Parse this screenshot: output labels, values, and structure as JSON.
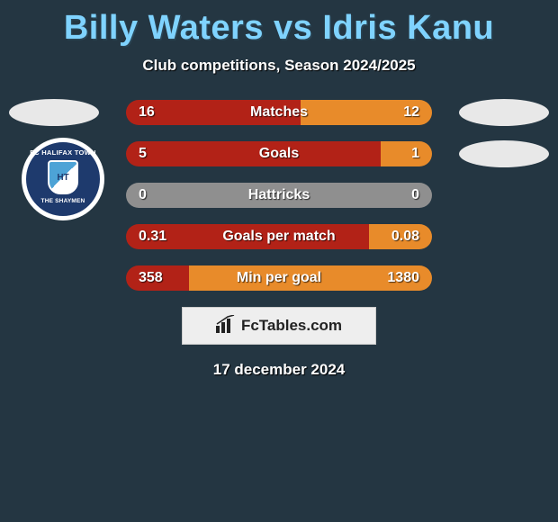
{
  "background_color": "#243642",
  "title": {
    "text": "Billy Waters vs Idris Kanu",
    "color": "#7fd3ff",
    "fontsize": 38,
    "shadow_color": "#2a4555"
  },
  "subtitle": {
    "text": "Club competitions, Season 2024/2025",
    "color": "#ffffff",
    "fontsize": 17
  },
  "legend_players": {
    "left": "Billy Waters",
    "right": "Idris Kanu"
  },
  "club_badge_left": {
    "top_text": "FC HALIFAX TOWN",
    "shield_text": "HT",
    "bottom_text": "THE SHAYMEN",
    "ring_color": "#1e3a6d",
    "shield_colors": [
      "#4da3d6",
      "#ffffff"
    ]
  },
  "bar_style": {
    "height": 28,
    "radius": 14,
    "container_width": 340,
    "label_fontsize": 16,
    "label_color": "#ffffff",
    "value_fontsize": 16,
    "value_color": "#ffffff"
  },
  "colors": {
    "left": "#b22217",
    "right": "#e88b2a",
    "neutral": "#8f8f8f"
  },
  "stats": [
    {
      "label": "Matches",
      "left_val": "16",
      "right_val": "12",
      "left_pct": 57.1,
      "right_pct": 42.9,
      "neutral": false
    },
    {
      "label": "Goals",
      "left_val": "5",
      "right_val": "1",
      "left_pct": 83.3,
      "right_pct": 16.7,
      "neutral": false
    },
    {
      "label": "Hattricks",
      "left_val": "0",
      "right_val": "0",
      "left_pct": 0,
      "right_pct": 0,
      "neutral": true
    },
    {
      "label": "Goals per match",
      "left_val": "0.31",
      "right_val": "0.08",
      "left_pct": 79.5,
      "right_pct": 20.5,
      "neutral": false
    },
    {
      "label": "Min per goal",
      "left_val": "358",
      "right_val": "1380",
      "left_pct": 20.6,
      "right_pct": 79.4,
      "neutral": false
    }
  ],
  "fctables": {
    "text": "FcTables.com",
    "bg": "#eeeeee",
    "fontsize": 17,
    "text_color": "#222222"
  },
  "date": {
    "text": "17 december 2024",
    "color": "#ffffff",
    "fontsize": 17
  }
}
